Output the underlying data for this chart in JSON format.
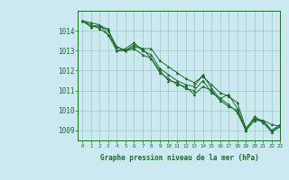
{
  "title": "Graphe pression niveau de la mer (hPa)",
  "bg_color": "#cce8f0",
  "grid_color": "#99ccbb",
  "line_color": "#1a6b2a",
  "xlim": [
    -0.5,
    23
  ],
  "ylim": [
    1008.5,
    1015.0
  ],
  "yticks": [
    1009,
    1010,
    1011,
    1012,
    1013,
    1014
  ],
  "xticks": [
    0,
    1,
    2,
    3,
    4,
    5,
    6,
    7,
    8,
    9,
    10,
    11,
    12,
    13,
    14,
    15,
    16,
    17,
    18,
    19,
    20,
    21,
    22,
    23
  ],
  "series": [
    [
      1014.5,
      1014.4,
      1014.3,
      1013.8,
      1013.2,
      1013.0,
      1013.3,
      1013.1,
      1013.1,
      1012.5,
      1012.2,
      1011.9,
      1011.6,
      1011.4,
      1011.7,
      1011.3,
      1010.9,
      1010.7,
      1010.4,
      1009.1,
      1009.6,
      1009.5,
      1009.3,
      1009.2
    ],
    [
      1014.5,
      1014.3,
      1014.1,
      1013.8,
      1013.0,
      1013.1,
      1013.4,
      1013.0,
      1012.8,
      1012.1,
      1011.8,
      1011.5,
      1011.3,
      1011.2,
      1011.8,
      1011.1,
      1010.6,
      1010.8,
      1010.1,
      1009.1,
      1009.6,
      1009.4,
      1008.9,
      1009.2
    ],
    [
      1014.5,
      1014.2,
      1014.2,
      1014.1,
      1013.0,
      1013.0,
      1013.2,
      1013.1,
      1012.6,
      1012.0,
      1011.5,
      1011.4,
      1011.1,
      1011.0,
      1011.5,
      1010.9,
      1010.6,
      1010.3,
      1009.9,
      1009.0,
      1009.7,
      1009.4,
      1009.0,
      1009.3
    ],
    [
      1014.5,
      1014.2,
      1014.3,
      1014.0,
      1013.2,
      1013.0,
      1013.1,
      1012.8,
      1012.6,
      1011.9,
      1011.6,
      1011.3,
      1011.2,
      1010.8,
      1011.2,
      1011.0,
      1010.5,
      1010.2,
      1010.0,
      1009.0,
      1009.5,
      1009.5,
      1009.0,
      1009.2
    ]
  ]
}
